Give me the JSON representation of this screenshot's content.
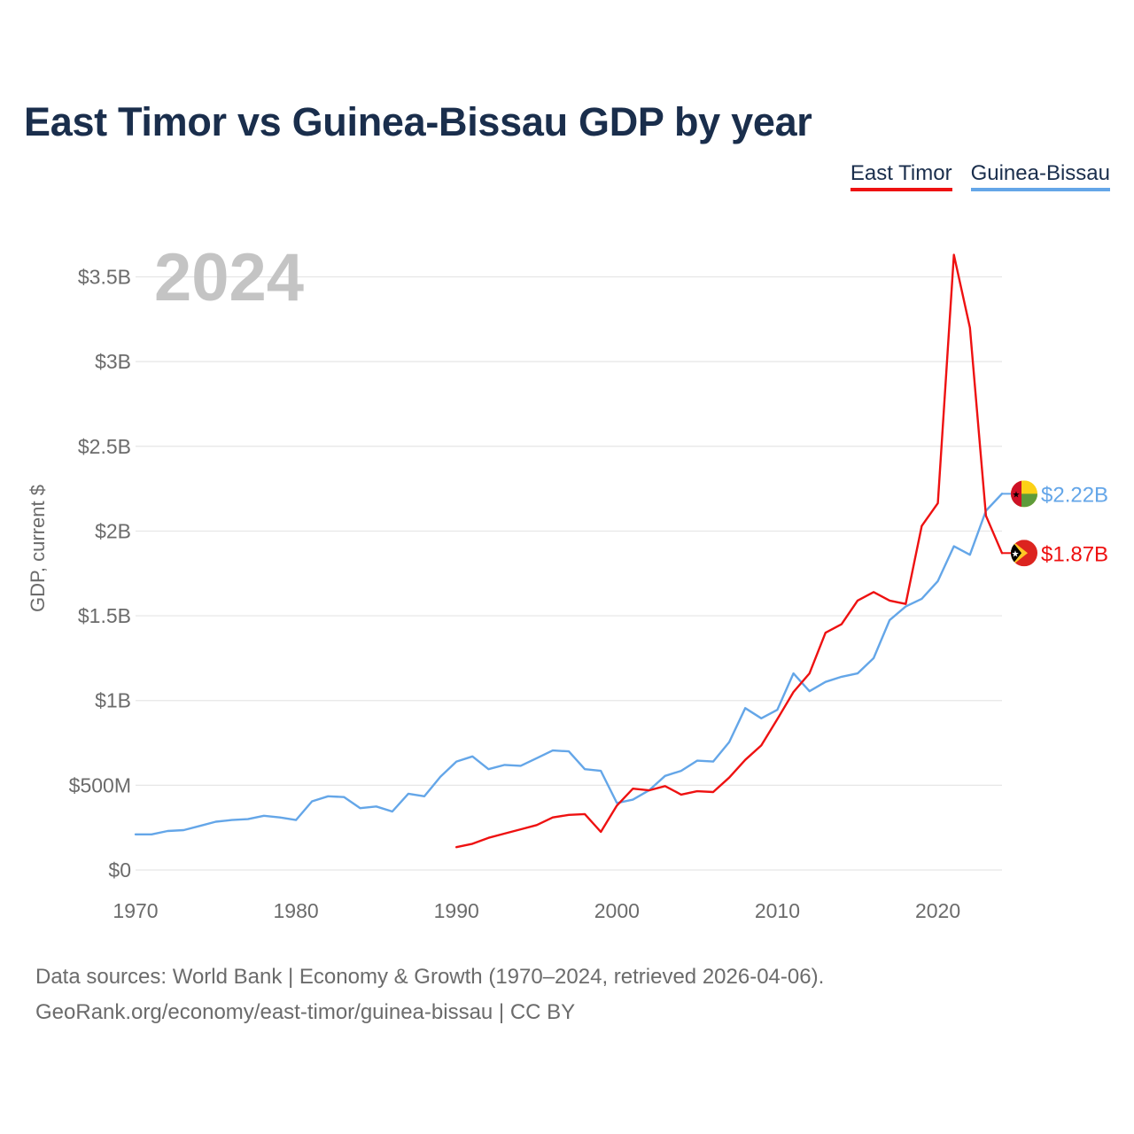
{
  "title": "East Timor vs Guinea-Bissau GDP by year",
  "year_label": "2024",
  "legend": [
    {
      "label": "East Timor",
      "color": "#ee1111"
    },
    {
      "label": "Guinea-Bissau",
      "color": "#64a6e8"
    }
  ],
  "source": {
    "line1": "Data sources: World Bank | Economy & Growth (1970–2024, retrieved 2026-04-06).",
    "line2": "GeoRank.org/economy/east-timor/guinea-bissau | CC BY"
  },
  "chart_data": {
    "type": "line",
    "title": "East Timor vs Guinea-Bissau GDP by year",
    "xlabel": "",
    "ylabel": "GDP, current $",
    "xlim": [
      1970,
      2024
    ],
    "ylim": [
      0,
      3500000000
    ],
    "x_ticks": [
      1970,
      1980,
      1990,
      2000,
      2010,
      2020
    ],
    "x_tick_labels": [
      "1970",
      "1980",
      "1990",
      "2000",
      "2010",
      "2020"
    ],
    "y_ticks": [
      0,
      500000000,
      1000000000,
      1500000000,
      2000000000,
      2500000000,
      3000000000,
      3500000000
    ],
    "y_tick_labels": [
      "$0",
      "$500M",
      "$1B",
      "$1.5B",
      "$2B",
      "$2.5B",
      "$3B",
      "$3.5B"
    ],
    "grid": true,
    "legend_position": "top-right",
    "series": [
      {
        "name": "Guinea-Bissau",
        "color": "#64a6e8",
        "end_label": "$2.22B",
        "x": [
          1970,
          1971,
          1972,
          1973,
          1974,
          1975,
          1976,
          1977,
          1978,
          1979,
          1980,
          1981,
          1982,
          1983,
          1984,
          1985,
          1986,
          1987,
          1988,
          1989,
          1990,
          1991,
          1992,
          1993,
          1994,
          1995,
          1996,
          1997,
          1998,
          1999,
          2000,
          2001,
          2002,
          2003,
          2004,
          2005,
          2006,
          2007,
          2008,
          2009,
          2010,
          2011,
          2012,
          2013,
          2014,
          2015,
          2016,
          2017,
          2018,
          2019,
          2020,
          2021,
          2022,
          2023,
          2024
        ],
        "values": [
          210000000,
          210000000,
          230000000,
          235000000,
          260000000,
          285000000,
          295000000,
          300000000,
          320000000,
          310000000,
          295000000,
          405000000,
          435000000,
          430000000,
          365000000,
          375000000,
          345000000,
          450000000,
          435000000,
          550000000,
          640000000,
          670000000,
          595000000,
          620000000,
          615000000,
          660000000,
          705000000,
          700000000,
          595000000,
          585000000,
          395000000,
          415000000,
          470000000,
          555000000,
          585000000,
          645000000,
          640000000,
          755000000,
          955000000,
          895000000,
          945000000,
          1160000000,
          1055000000,
          1110000000,
          1140000000,
          1160000000,
          1250000000,
          1475000000,
          1555000000,
          1600000000,
          1705000000,
          1910000000,
          1860000000,
          2120000000,
          2220000000
        ]
      },
      {
        "name": "East Timor",
        "color": "#ee1111",
        "end_label": "$1.87B",
        "x": [
          1990,
          1991,
          1992,
          1993,
          1994,
          1995,
          1996,
          1997,
          1998,
          1999,
          2000,
          2001,
          2002,
          2003,
          2004,
          2005,
          2006,
          2007,
          2008,
          2009,
          2010,
          2011,
          2012,
          2013,
          2014,
          2015,
          2016,
          2017,
          2018,
          2019,
          2020,
          2021,
          2022,
          2023,
          2024
        ],
        "values": [
          135000000,
          155000000,
          190000000,
          215000000,
          240000000,
          265000000,
          310000000,
          325000000,
          330000000,
          225000000,
          380000000,
          480000000,
          470000000,
          495000000,
          445000000,
          465000000,
          460000000,
          545000000,
          650000000,
          735000000,
          890000000,
          1050000000,
          1160000000,
          1400000000,
          1450000000,
          1590000000,
          1640000000,
          1590000000,
          1570000000,
          2030000000,
          2165000000,
          3630000000,
          3200000000,
          2090000000,
          1870000000
        ]
      }
    ]
  }
}
